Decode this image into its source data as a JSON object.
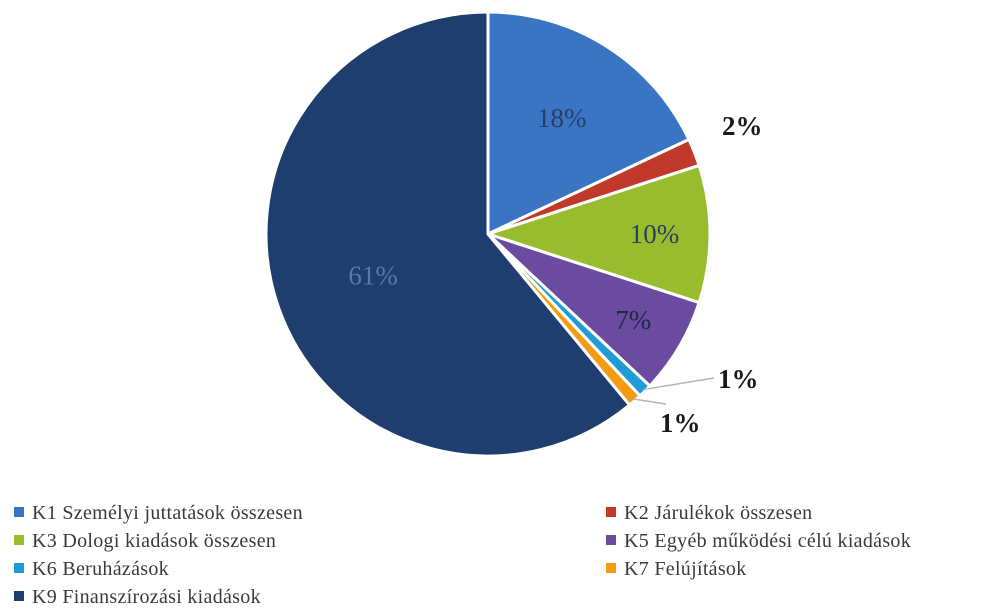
{
  "chart_data": {
    "type": "pie",
    "start_angle_deg": 0,
    "direction": "clockwise",
    "slices": [
      {
        "category": "K1 Személyi juttatások összesen",
        "value": 18,
        "label": "18%",
        "color": "#3a75c4",
        "label_color": "#2a3f66",
        "label_style": "inside"
      },
      {
        "category": "K2 Járulékok összesen",
        "value": 2,
        "label": "2%",
        "color": "#c0392b",
        "label_color": "#1a1a1a",
        "label_style": "outside-bold"
      },
      {
        "category": "K3 Dologi kiadások összesen",
        "value": 10,
        "label": "10%",
        "color": "#99bb2e",
        "label_color": "#2a3f66",
        "label_style": "inside"
      },
      {
        "category": "K5 Egyéb működési célú kiadások",
        "value": 7,
        "label": "7%",
        "color": "#6a4ba0",
        "label_color": "#1f2a44",
        "label_style": "inside"
      },
      {
        "category": "K6 Beruházások",
        "value": 1,
        "label": "1%",
        "color": "#1f9bd5",
        "label_color": "#1a1a1a",
        "label_style": "outside-bold"
      },
      {
        "category": "K7 Felújítások",
        "value": 1,
        "label": "1%",
        "color": "#f39c12",
        "label_color": "#1a1a1a",
        "label_style": "outside-bold"
      },
      {
        "category": "K9 Finanszírozási kiadások",
        "value": 61,
        "label": "61%",
        "color": "#1d3e6e",
        "label_color": "#5878a8",
        "label_style": "inside"
      }
    ],
    "legend": {
      "placement": "bottom",
      "columns": 2,
      "entries": [
        "K1 Személyi juttatások összesen",
        "K2 Járulékok összesen",
        "K3 Dologi kiadások összesen",
        "K5 Egyéb működési célú kiadások",
        "K6 Beruházások",
        "K7 Felújítások",
        "K9 Finanszírozási kiadások"
      ]
    }
  }
}
